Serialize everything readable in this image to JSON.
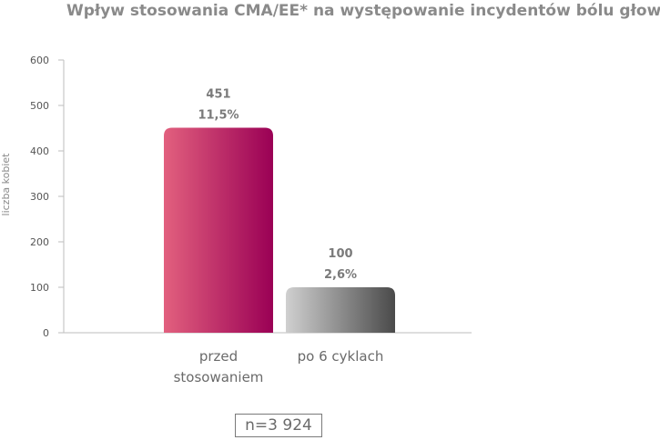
{
  "chart_data": {
    "type": "bar",
    "title": "Wpływ stosowania CMA/EE* na występowanie incydentów bólu głowy",
    "xlabel": "",
    "ylabel": "liczba kobiet",
    "ylim": [
      0,
      600
    ],
    "yticks": [
      0,
      100,
      200,
      300,
      400,
      500,
      600
    ],
    "categories": [
      "przed stosowaniem",
      "po 6 cyklach"
    ],
    "category_lines": [
      [
        "przed",
        "stosowaniem"
      ],
      [
        "po 6 cyklach"
      ]
    ],
    "values": [
      451,
      100
    ],
    "percent_labels": [
      "11,5%",
      "2,6%"
    ],
    "bar_colors": [
      [
        "#e2607e",
        "#9a0055"
      ],
      [
        "#d0d0d0",
        "#4a4a4a"
      ]
    ],
    "grid": false,
    "legend": "none"
  },
  "sample_size_label": "n=3 924"
}
